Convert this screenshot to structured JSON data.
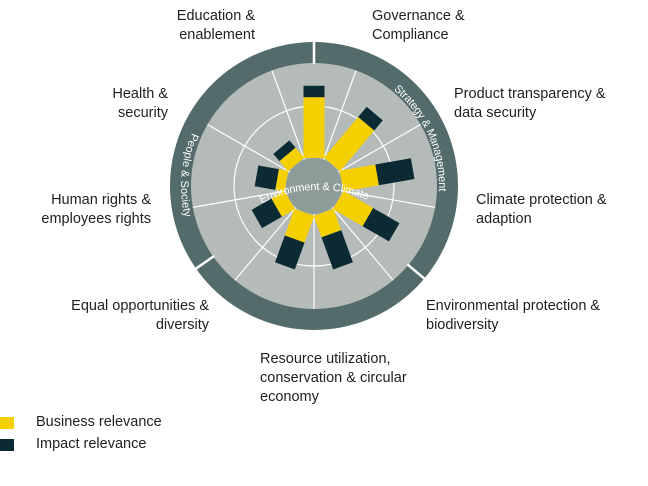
{
  "chart_data": {
    "type": "radial-bar",
    "title": "",
    "scale": [
      0,
      5
    ],
    "colors": {
      "business": "#f5d000",
      "impact": "#0b2a33",
      "inner_area": "#b4bbb8",
      "core": "#8d9c99",
      "ring": "#546b6b",
      "lines": "#ffffff"
    },
    "series": [
      {
        "name": "Business relevance",
        "color": "#f5d000"
      },
      {
        "name": "Impact relevance",
        "color": "#0b2a33"
      }
    ],
    "categories": [
      {
        "label": "Governance &\nCompliance",
        "business": 3.2,
        "impact": 0.6
      },
      {
        "label": "Product transparency &\ndata security",
        "business": 2.8,
        "impact": 0.7
      },
      {
        "label": "Climate protection &\nadaption",
        "business": 1.9,
        "impact": 1.9
      },
      {
        "label": "Environmental protection &\nbiodiversity",
        "business": 1.8,
        "impact": 1.6
      },
      {
        "label": "Resource utilization,\nconservation & circular\neconomy",
        "business": 1.2,
        "impact": 1.8
      },
      {
        "label": "Equal opportunities &\ndiversity",
        "business": 1.5,
        "impact": 1.5
      },
      {
        "label": "Human rights &\nemployees rights",
        "business": 0.8,
        "impact": 1.2
      },
      {
        "label": "Health &\nsecurity",
        "business": 0.5,
        "impact": 1.1
      },
      {
        "label": "Education &\nenablement",
        "business": 0.7,
        "impact": 0.5
      }
    ],
    "ring_labels": [
      "Strategy & Management",
      "Environment & Climate",
      "People & Society"
    ],
    "legend": [
      "Business relevance",
      "Impact relevance"
    ]
  }
}
